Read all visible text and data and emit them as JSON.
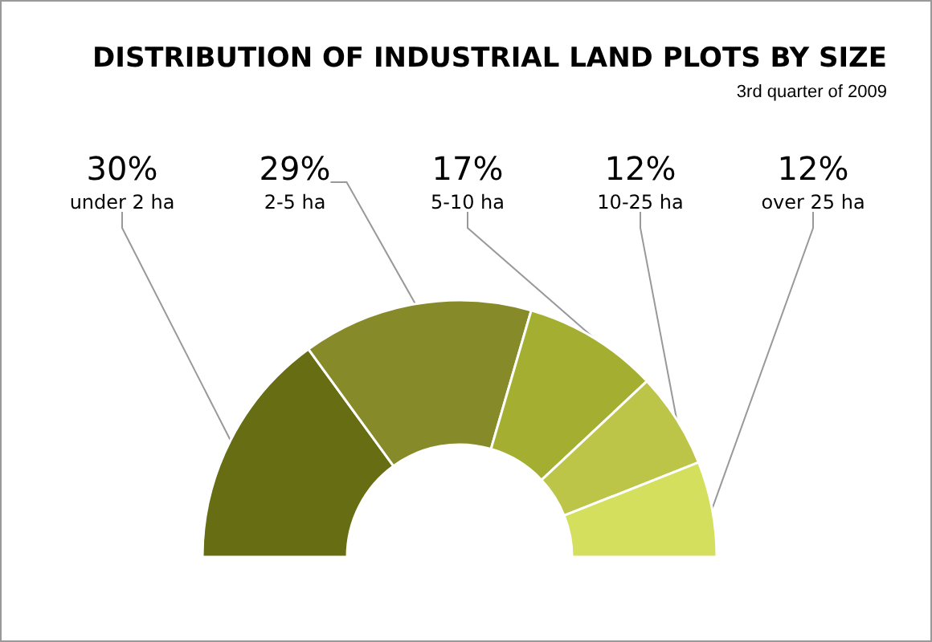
{
  "chart_data": {
    "type": "donut",
    "title": "DISTRIBUTION OF INDUSTRIAL LAND PLOTS BY SIZE",
    "subtitle": "3rd quarter of 2009",
    "categories": [
      "under 2 ha",
      "2-5 ha",
      "5-10 ha",
      "10-25 ha",
      "over 25 ha"
    ],
    "values": [
      30,
      29,
      17,
      12,
      12
    ],
    "value_labels": [
      "30%",
      "29%",
      "17%",
      "12%",
      "12%"
    ],
    "colors": [
      "#666d12",
      "#868a28",
      "#a4ae31",
      "#bcc547",
      "#d5df5e"
    ],
    "legend": false
  }
}
